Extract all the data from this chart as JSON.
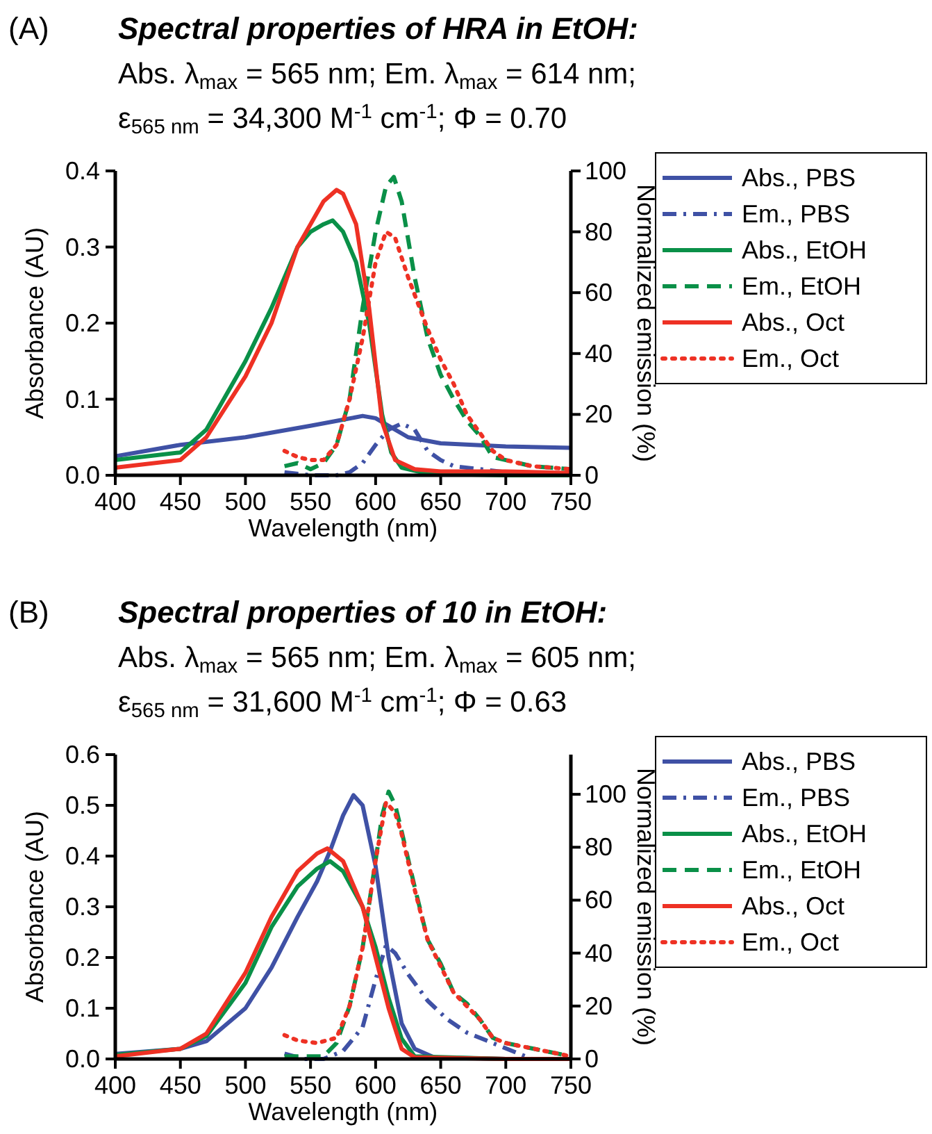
{
  "chart_data": [
    {
      "type": "line",
      "title": "Spectral properties of HRA in EtOH:",
      "subtitle": "Abs. λ$_{max}$ = 565 nm; Em. λ$_{max}$ = 614 nm;\nε$_{565 nm}$ = 34,300 M$^{-1}$ cm$^{-1}$; Φ = 0.70",
      "annotations": [
        "(A)"
      ],
      "xlabel": "Wavelength (nm)",
      "ylabel": "Absorbance (AU)",
      "y2label": "Normalized emission (%)",
      "xlim": [
        400,
        750
      ],
      "xticks": [
        400,
        450,
        500,
        550,
        600,
        650,
        700,
        750
      ],
      "ylim": [
        0,
        0.4
      ],
      "yticks": [
        {
          "value": 0,
          "label": "0.0"
        },
        {
          "value": 0.1,
          "label": "0.1"
        },
        {
          "value": 0.2,
          "label": "0.2"
        },
        {
          "value": 0.3,
          "label": "0.3"
        },
        {
          "value": 0.4,
          "label": "0.4"
        }
      ],
      "y2lim": [
        0,
        100
      ],
      "y2ticks": [
        0,
        20,
        40,
        60,
        80,
        100
      ],
      "legend": "right",
      "grid": false,
      "marker": "none",
      "series": [
        {
          "name": "Abs., PBS",
          "color": "#3f51a5",
          "line_style": "solid",
          "x": [
            400,
            450,
            500,
            550,
            575,
            590,
            600,
            610,
            625,
            650,
            700,
            750
          ],
          "values": [
            0.025,
            0.04,
            0.05,
            0.065,
            0.073,
            0.078,
            0.075,
            0.065,
            0.05,
            0.042,
            0.038,
            0.036
          ]
        },
        {
          "name": "Em., PBS",
          "color": "#3f51a5",
          "line_style": "dashdot",
          "axis": "y2",
          "x": [
            530,
            550,
            570,
            580,
            590,
            600,
            610,
            620,
            630,
            640,
            650,
            660,
            680,
            700,
            750
          ],
          "values": [
            1,
            0,
            0,
            1,
            4,
            10,
            15,
            17,
            15,
            8,
            5,
            3,
            2,
            1,
            0
          ]
        },
        {
          "name": "Abs., EtOH",
          "color": "#0a9048",
          "line_style": "solid",
          "x": [
            400,
            450,
            470,
            500,
            520,
            540,
            550,
            560,
            567,
            575,
            585,
            595,
            605,
            612,
            620,
            640,
            700,
            750
          ],
          "values": [
            0.02,
            0.03,
            0.06,
            0.15,
            0.22,
            0.3,
            0.32,
            0.33,
            0.335,
            0.32,
            0.28,
            0.2,
            0.08,
            0.03,
            0.01,
            0.002,
            0,
            0
          ]
        },
        {
          "name": "Em., EtOH",
          "color": "#0a9048",
          "line_style": "dashed",
          "axis": "y2",
          "x": [
            530,
            540,
            550,
            560,
            570,
            580,
            590,
            600,
            608,
            614,
            620,
            630,
            640,
            650,
            660,
            670,
            680,
            690,
            700,
            720,
            750
          ],
          "values": [
            3,
            4,
            2,
            4,
            10,
            25,
            55,
            80,
            95,
            98,
            90,
            65,
            45,
            33,
            25,
            18,
            13,
            6,
            5,
            3,
            2
          ]
        },
        {
          "name": "Abs., Oct",
          "color": "#ee3124",
          "line_style": "solid",
          "x": [
            400,
            450,
            470,
            500,
            520,
            540,
            550,
            560,
            570,
            575,
            585,
            595,
            605,
            615,
            630,
            650,
            700,
            750
          ],
          "values": [
            0.01,
            0.02,
            0.05,
            0.13,
            0.2,
            0.3,
            0.33,
            0.36,
            0.375,
            0.37,
            0.33,
            0.22,
            0.07,
            0.02,
            0.008,
            0.005,
            0.005,
            0.003
          ]
        },
        {
          "name": "Em., Oct",
          "color": "#ee3124",
          "line_style": "dotted",
          "axis": "y2",
          "x": [
            530,
            540,
            550,
            560,
            570,
            580,
            590,
            600,
            608,
            615,
            625,
            640,
            650,
            660,
            670,
            680,
            690,
            700,
            720,
            750
          ],
          "values": [
            8,
            6,
            5,
            5,
            10,
            25,
            45,
            70,
            80,
            78,
            65,
            48,
            38,
            30,
            20,
            14,
            8,
            5,
            3,
            2
          ]
        }
      ]
    },
    {
      "type": "line",
      "title": "Spectral properties of 10 in EtOH:",
      "subtitle": "Abs. λ$_{max}$ = 565 nm; Em. λ$_{max}$ = 605 nm;\nε$_{565 nm}$ = 31,600 M$^{-1}$ cm$^{-1}$; Φ = 0.63",
      "annotations": [
        "(B)"
      ],
      "xlabel": "Wavelength (nm)",
      "ylabel": "Absorbance (AU)",
      "y2label": "Normalized emission (%)",
      "xlim": [
        400,
        750
      ],
      "xticks": [
        400,
        450,
        500,
        550,
        600,
        650,
        700,
        750
      ],
      "ylim": [
        0,
        0.6
      ],
      "yticks": [
        {
          "value": 0,
          "label": "0.0"
        },
        {
          "value": 0.1,
          "label": "0.1"
        },
        {
          "value": 0.2,
          "label": "0.2"
        },
        {
          "value": 0.3,
          "label": "0.3"
        },
        {
          "value": 0.4,
          "label": "0.4"
        },
        {
          "value": 0.5,
          "label": "0.5"
        },
        {
          "value": 0.6,
          "label": "0.6"
        }
      ],
      "y2lim": [
        0,
        115
      ],
      "y2ticks": [
        0,
        20,
        40,
        60,
        80,
        100
      ],
      "legend": "right",
      "grid": false,
      "marker": "none",
      "series": [
        {
          "name": "Abs., PBS",
          "color": "#3f51a5",
          "line_style": "solid",
          "x": [
            400,
            450,
            470,
            500,
            520,
            540,
            555,
            565,
            575,
            583,
            590,
            600,
            610,
            620,
            630,
            645,
            700,
            750
          ],
          "values": [
            0.01,
            0.02,
            0.035,
            0.1,
            0.18,
            0.28,
            0.35,
            0.41,
            0.48,
            0.52,
            0.5,
            0.38,
            0.2,
            0.07,
            0.02,
            0.003,
            0,
            0
          ]
        },
        {
          "name": "Em., PBS",
          "color": "#3f51a5",
          "line_style": "dashdot",
          "axis": "y2",
          "x": [
            530,
            545,
            560,
            575,
            590,
            600,
            608,
            615,
            625,
            640,
            655,
            670,
            685,
            700,
            710,
            720,
            750
          ],
          "values": [
            2,
            0,
            0,
            3,
            12,
            30,
            43,
            40,
            32,
            22,
            15,
            10,
            7,
            4,
            2,
            0,
            0
          ]
        },
        {
          "name": "Abs., EtOH",
          "color": "#0a9048",
          "line_style": "solid",
          "x": [
            400,
            450,
            470,
            500,
            520,
            540,
            555,
            565,
            575,
            590,
            600,
            610,
            620,
            630,
            700,
            750
          ],
          "values": [
            0.008,
            0.02,
            0.045,
            0.15,
            0.26,
            0.34,
            0.375,
            0.39,
            0.37,
            0.3,
            0.22,
            0.12,
            0.04,
            0.005,
            0,
            0
          ]
        },
        {
          "name": "Em., EtOH",
          "color": "#0a9048",
          "line_style": "dashed",
          "axis": "y2",
          "x": [
            530,
            545,
            560,
            570,
            580,
            590,
            600,
            605,
            610,
            615,
            620,
            630,
            640,
            650,
            660,
            670,
            680,
            690,
            700,
            720,
            740,
            750
          ],
          "values": [
            1,
            1,
            1,
            6,
            20,
            42,
            75,
            92,
            101,
            96,
            86,
            65,
            45,
            36,
            25,
            21,
            15,
            8,
            6,
            4,
            2,
            1
          ]
        },
        {
          "name": "Abs., Oct",
          "color": "#ee3124",
          "line_style": "solid",
          "x": [
            400,
            450,
            470,
            500,
            520,
            540,
            555,
            563,
            575,
            590,
            600,
            610,
            620,
            630,
            700,
            750
          ],
          "values": [
            0.005,
            0.02,
            0.05,
            0.17,
            0.28,
            0.37,
            0.405,
            0.415,
            0.39,
            0.3,
            0.2,
            0.1,
            0.02,
            0.003,
            0,
            0
          ]
        },
        {
          "name": "Em., Oct",
          "color": "#ee3124",
          "line_style": "dotted",
          "axis": "y2",
          "x": [
            530,
            540,
            555,
            570,
            580,
            590,
            600,
            608,
            615,
            620,
            630,
            640,
            650,
            660,
            670,
            680,
            690,
            700,
            720,
            740,
            750
          ],
          "values": [
            9,
            7,
            6,
            8,
            20,
            42,
            75,
            97,
            93,
            85,
            64,
            45,
            35,
            25,
            20,
            15,
            8,
            6,
            4,
            2,
            1
          ]
        }
      ]
    }
  ]
}
